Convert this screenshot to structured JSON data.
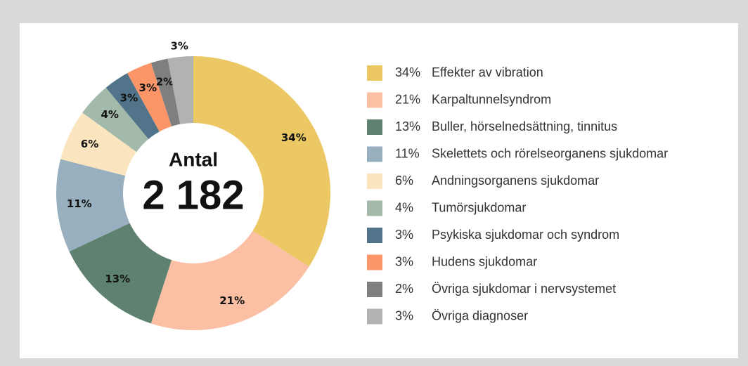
{
  "chart_data": {
    "type": "donut",
    "center_title": "Antal",
    "center_value": "2 182",
    "categories": [
      "Effekter av vibration",
      "Karpaltunnelsyndrom",
      "Buller, hörselnedsättning, tinnitus",
      "Skelettets och rörelseorganens sjukdomar",
      "Andningsorganens sjukdomar",
      "Tumörsjukdomar",
      "Psykiska sjukdomar och syndrom",
      "Hudens sjukdomar",
      "Övriga sjukdomar i nervsystemet",
      "Övriga diagnoser"
    ],
    "values": [
      34,
      21,
      13,
      11,
      6,
      4,
      3,
      3,
      2,
      3
    ],
    "value_labels": [
      "34%",
      "21%",
      "13%",
      "11%",
      "6%",
      "4%",
      "3%",
      "3%",
      "2%",
      "3%"
    ],
    "colors": [
      "#ecc865",
      "#fbbfa4",
      "#5f8170",
      "#98afc0",
      "#fae5bf",
      "#a3b9aa",
      "#52748a",
      "#fc9668",
      "#7f7f7f",
      "#b2b2b2"
    ],
    "legend_position": "right"
  }
}
